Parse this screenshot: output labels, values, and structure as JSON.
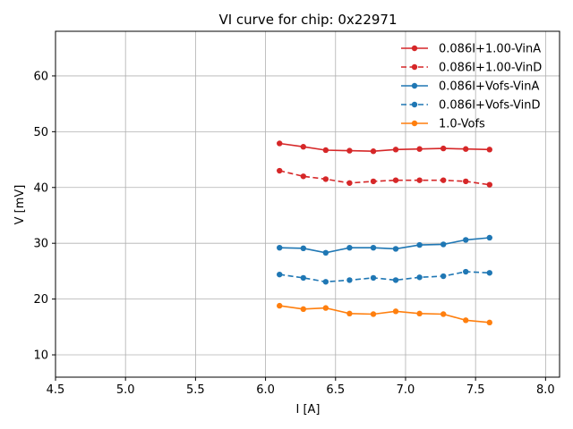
{
  "chart_data": {
    "type": "line",
    "title": "VI curve for chip: 0x22971",
    "xlabel": "I [A]",
    "ylabel": "V [mV]",
    "xlim": [
      4.5,
      8.1
    ],
    "ylim": [
      6,
      68
    ],
    "xticks": [
      4.5,
      5.0,
      5.5,
      6.0,
      6.5,
      7.0,
      7.5,
      8.0
    ],
    "xtick_labels": [
      "4.5",
      "5.0",
      "5.5",
      "6.0",
      "6.5",
      "7.0",
      "7.5",
      "8.0"
    ],
    "yticks": [
      10,
      20,
      30,
      40,
      50,
      60
    ],
    "ytick_labels": [
      "10",
      "20",
      "30",
      "40",
      "50",
      "60"
    ],
    "grid": true,
    "legend_position": "top-right",
    "x": [
      6.1,
      6.27,
      6.43,
      6.6,
      6.77,
      6.93,
      7.1,
      7.27,
      7.43,
      7.6
    ],
    "series": [
      {
        "name": "0.086I+1.00-VinA",
        "color": "#d62728",
        "dash": false,
        "values": [
          47.9,
          47.3,
          46.7,
          46.6,
          46.5,
          46.8,
          46.9,
          47.0,
          46.9,
          46.8
        ]
      },
      {
        "name": "0.086I+1.00-VinD",
        "color": "#d62728",
        "dash": true,
        "values": [
          43.0,
          42.0,
          41.5,
          40.8,
          41.1,
          41.3,
          41.3,
          41.3,
          41.1,
          40.5
        ]
      },
      {
        "name": "0.086I+Vofs-VinA",
        "color": "#1f77b4",
        "dash": false,
        "values": [
          29.2,
          29.1,
          28.3,
          29.2,
          29.2,
          29.0,
          29.7,
          29.8,
          30.6,
          31.0
        ]
      },
      {
        "name": "0.086I+Vofs-VinD",
        "color": "#1f77b4",
        "dash": true,
        "values": [
          24.4,
          23.8,
          23.1,
          23.4,
          23.8,
          23.4,
          23.9,
          24.1,
          24.9,
          24.7
        ]
      },
      {
        "name": "1.0-Vofs",
        "color": "#ff7f0e",
        "dash": false,
        "values": [
          18.8,
          18.2,
          18.4,
          17.4,
          17.3,
          17.8,
          17.4,
          17.3,
          16.2,
          15.8
        ]
      }
    ]
  }
}
